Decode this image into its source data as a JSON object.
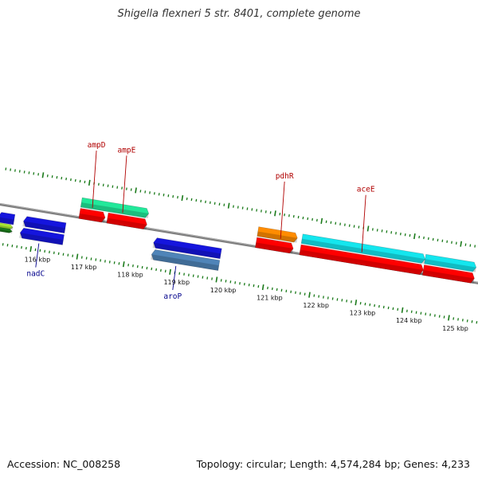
{
  "title": "Shigella flexneri 5 str. 8401, complete genome",
  "footer": {
    "accession": "Accession: NC_008258",
    "topology": "Topology: circular; Length: 4,574,284 bp; Genes: 4,233"
  },
  "colors": {
    "backbone": "#808080",
    "ticks": "#1a7a1a",
    "fwd_label": "#b00000",
    "rev_label": "#00008b",
    "cds_red": "#ff0000",
    "blue": "#1515dd",
    "steelblue": "#4f84b8",
    "mint": "#22e89a",
    "orange": "#ff8c00",
    "cyan": "#14e6ee",
    "lime": "#a6e632",
    "darkgreen": "#1a7a1a"
  },
  "chart_data": {
    "type": "linear-genome-map",
    "region_kbp": [
      115.2,
      125.4
    ],
    "axis_ticks": [
      {
        "kbp": 116,
        "label": "116 kbp"
      },
      {
        "kbp": 117,
        "label": "117 kbp"
      },
      {
        "kbp": 118,
        "label": "118 kbp"
      },
      {
        "kbp": 119,
        "label": "119 kbp"
      },
      {
        "kbp": 120,
        "label": "120 kbp"
      },
      {
        "kbp": 121,
        "label": "121 kbp"
      },
      {
        "kbp": 122,
        "label": "122 kbp"
      },
      {
        "kbp": 123,
        "label": "123 kbp"
      },
      {
        "kbp": 124,
        "label": "124 kbp"
      },
      {
        "kbp": 125,
        "label": "125 kbp"
      }
    ],
    "features": [
      {
        "id": "f1",
        "start": 115.2,
        "end": 115.55,
        "strand": "-",
        "track": "cds-rev",
        "color": "blue"
      },
      {
        "id": "f2",
        "start": 115.2,
        "end": 115.55,
        "strand": "+",
        "track": "gene-rev-a",
        "color": "lime"
      },
      {
        "id": "f3",
        "start": 115.2,
        "end": 115.55,
        "strand": "+",
        "track": "gene-rev-b",
        "color": "darkgreen"
      },
      {
        "id": "f4",
        "start": 115.75,
        "end": 116.65,
        "strand": "-",
        "track": "cds-rev",
        "color": "blue"
      },
      {
        "id": "nadC",
        "start": 115.72,
        "end": 116.65,
        "strand": "-",
        "track": "gene-rev",
        "color": "blue",
        "label": "nadC",
        "label_kbp": 116.15
      },
      {
        "id": "ampD_gene",
        "start": 116.9,
        "end": 118.35,
        "strand": "+",
        "track": "gene-fwd",
        "color": "mint"
      },
      {
        "id": "ampD",
        "start": 116.9,
        "end": 117.45,
        "strand": "+",
        "track": "cds-fwd",
        "color": "cds_red",
        "label": "ampD",
        "label_kbp": 117.15
      },
      {
        "id": "ampE",
        "start": 117.5,
        "end": 118.35,
        "strand": "+",
        "track": "cds-fwd",
        "color": "cds_red",
        "label": "ampE",
        "label_kbp": 117.8
      },
      {
        "id": "aroP_cds",
        "start": 118.55,
        "end": 120.0,
        "strand": "-",
        "track": "cds-rev",
        "color": "blue"
      },
      {
        "id": "aroP",
        "start": 118.55,
        "end": 120.0,
        "strand": "-",
        "track": "gene-rev",
        "color": "steelblue",
        "label": "aroP",
        "label_kbp": 119.1
      },
      {
        "id": "pdhR_gene",
        "start": 120.7,
        "end": 121.55,
        "strand": "+",
        "track": "gene-fwd",
        "color": "orange"
      },
      {
        "id": "pdhR",
        "start": 120.7,
        "end": 121.5,
        "strand": "+",
        "track": "cds-fwd",
        "color": "cds_red",
        "label": "pdhR",
        "label_kbp": 121.2
      },
      {
        "id": "aceE_gene",
        "start": 121.65,
        "end": 124.3,
        "strand": "+",
        "track": "gene-fwd",
        "color": "cyan"
      },
      {
        "id": "aceE",
        "start": 121.65,
        "end": 124.3,
        "strand": "+",
        "track": "cds-fwd",
        "color": "cds_red",
        "label": "aceE",
        "label_kbp": 122.95
      },
      {
        "id": "aceF_gene",
        "start": 124.3,
        "end": 125.4,
        "strand": "+",
        "track": "gene-fwd",
        "color": "cyan"
      },
      {
        "id": "aceF",
        "start": 124.3,
        "end": 125.4,
        "strand": "+",
        "track": "cds-fwd",
        "color": "cds_red"
      }
    ]
  }
}
